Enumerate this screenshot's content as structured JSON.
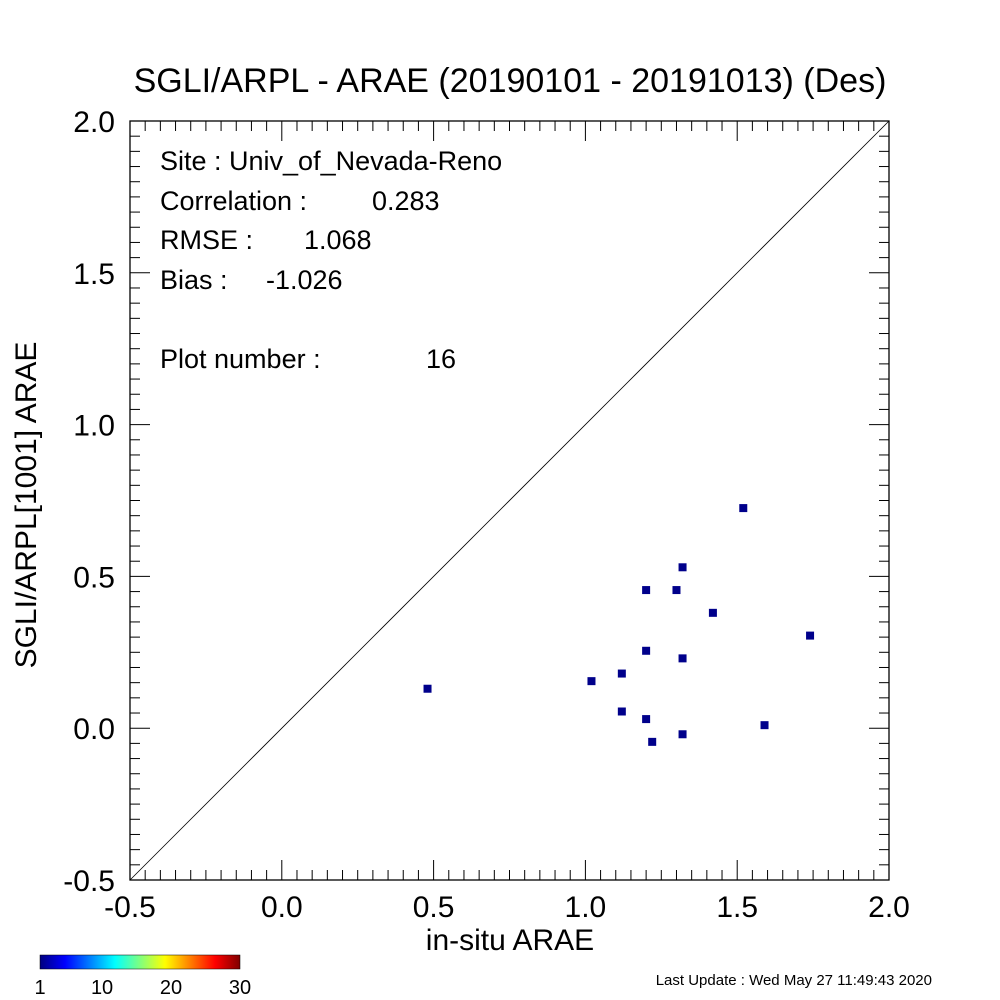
{
  "chart_data": {
    "type": "scatter",
    "title": "SGLI/ARPL - ARAE (20190101 - 20191013) (Des)",
    "xlabel": "in-situ ARAE",
    "ylabel": "SGLI/ARPL[1001]    ARAE",
    "xlim": [
      -0.5,
      2.0
    ],
    "ylim": [
      -0.5,
      2.0
    ],
    "xticks": [
      -0.5,
      0.0,
      0.5,
      1.0,
      1.5,
      2.0
    ],
    "yticks": [
      -0.5,
      0.0,
      0.5,
      1.0,
      1.5,
      2.0
    ],
    "xticklabels": [
      "-0.5",
      "0.0",
      "0.5",
      "1.0",
      "1.5",
      "2.0"
    ],
    "yticklabels": [
      "-0.5",
      "0.0",
      "0.5",
      "1.0",
      "1.5",
      "2.0"
    ],
    "one_to_one_line": true,
    "grid": false,
    "marker_color": "#00008b",
    "points": [
      {
        "x": 0.48,
        "y": 0.13
      },
      {
        "x": 1.02,
        "y": 0.155
      },
      {
        "x": 1.12,
        "y": 0.18
      },
      {
        "x": 1.12,
        "y": 0.055
      },
      {
        "x": 1.2,
        "y": 0.455
      },
      {
        "x": 1.2,
        "y": 0.255
      },
      {
        "x": 1.2,
        "y": 0.03
      },
      {
        "x": 1.22,
        "y": -0.045
      },
      {
        "x": 1.3,
        "y": 0.455
      },
      {
        "x": 1.32,
        "y": 0.53
      },
      {
        "x": 1.32,
        "y": 0.23
      },
      {
        "x": 1.32,
        "y": -0.02
      },
      {
        "x": 1.42,
        "y": 0.38
      },
      {
        "x": 1.52,
        "y": 0.725
      },
      {
        "x": 1.59,
        "y": 0.01
      },
      {
        "x": 1.74,
        "y": 0.305
      }
    ],
    "annotations": {
      "site": "Site : Univ_of_Nevada-Reno",
      "correlation_label": "Correlation :",
      "correlation_value": "0.283",
      "rmse_label": "RMSE :",
      "rmse_value": "1.068",
      "bias_label": "Bias :",
      "bias_value": "-1.026",
      "plot_number_label": "Plot number :",
      "plot_number_value": "16"
    },
    "colorbar": {
      "colormap": "jet",
      "ticks": [
        "1",
        "10",
        "20",
        "30"
      ]
    }
  },
  "footer": {
    "last_update": "Last Update : Wed May 27 11:49:43 2020"
  }
}
